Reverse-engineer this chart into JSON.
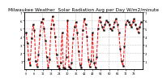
{
  "title": "Milwaukee Weather  Solar Radiation Avg per Day W/m2/minute",
  "title_fontsize": 4.2,
  "values": [
    4.5,
    3.2,
    1.2,
    0.5,
    3.8,
    5.5,
    4.8,
    1.0,
    0.3,
    1.8,
    4.2,
    5.8,
    6.2,
    5.0,
    3.5,
    1.5,
    0.2,
    1.2,
    5.0,
    6.5,
    5.5,
    4.0,
    1.8,
    0.4,
    0.1,
    0.8,
    4.5,
    0.2,
    0.1,
    1.5,
    6.0,
    0.3,
    0.1,
    0.8,
    3.8,
    5.2,
    5.8,
    4.5,
    2.2,
    0.5,
    0.2,
    4.8,
    6.2,
    5.5,
    4.0,
    1.2,
    0.3,
    1.0,
    4.5,
    0.8,
    0.2,
    1.5,
    5.0,
    6.4,
    5.8,
    5.2,
    4.8,
    5.5,
    6.0,
    5.8,
    5.5,
    5.0,
    4.8,
    5.2,
    5.8,
    6.2,
    5.5,
    4.5,
    2.5,
    1.0,
    0.4,
    2.8,
    5.5,
    6.0,
    5.8,
    5.5,
    5.2,
    5.8,
    6.2,
    5.5,
    5.0,
    4.5,
    5.2,
    5.8
  ],
  "line_color": "#ff0000",
  "line_style": "--",
  "line_width": 0.7,
  "marker": "s",
  "marker_color": "#000000",
  "marker_size": 1.2,
  "ylim": [
    0,
    7
  ],
  "yticks": [
    1,
    2,
    3,
    4,
    5,
    6,
    7
  ],
  "ytick_labels": [
    "1",
    "2",
    "3",
    "4",
    "5",
    "6",
    "7"
  ],
  "ytick_fontsize": 2.8,
  "xtick_fontsize": 2.5,
  "grid_color": "#999999",
  "grid_style": ":",
  "background_color": "#ffffff",
  "vline_positions": [
    11.5,
    23.5,
    35.5,
    47.5,
    59.5,
    71.5
  ],
  "num_points": 84
}
